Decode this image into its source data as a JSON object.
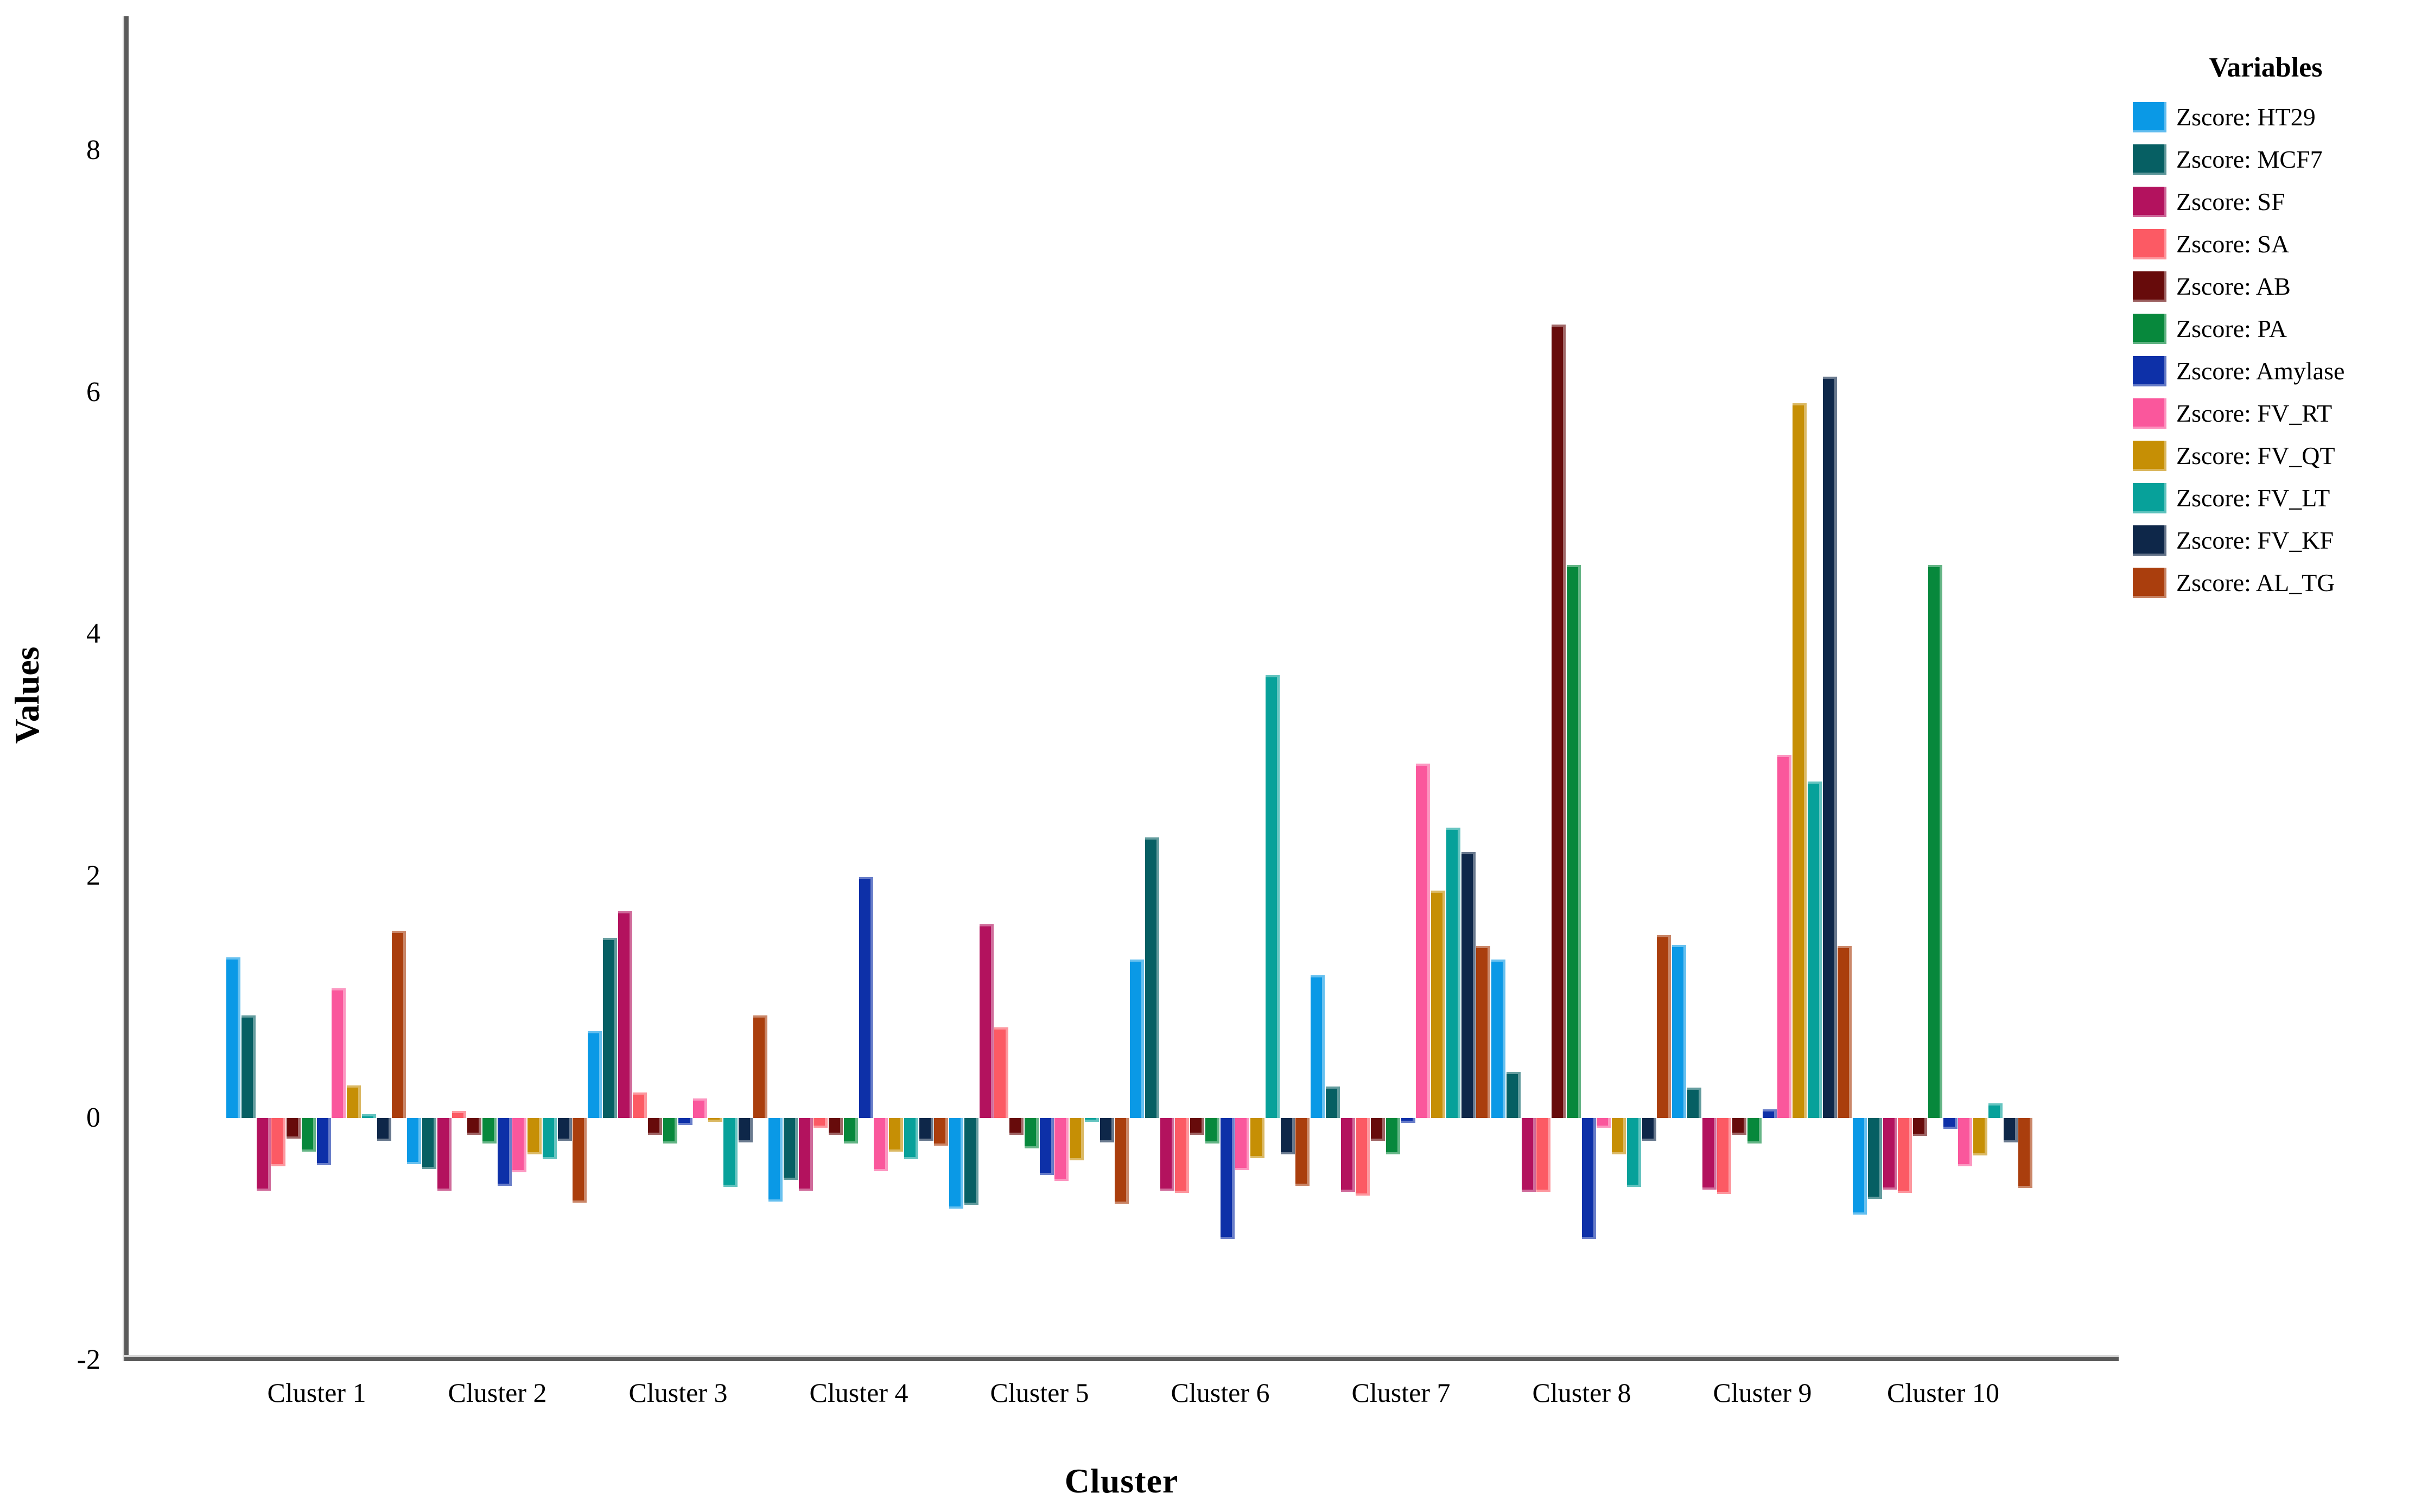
{
  "figure": {
    "y_axis_title": "Values",
    "x_axis_title": "Cluster",
    "legend_title": "Variables"
  },
  "chart_data": {
    "type": "bar",
    "title": "",
    "xlabel": "Cluster",
    "ylabel": "Values",
    "legend_title": "Variables",
    "legend_position": "right",
    "grid": false,
    "ylim": [
      -2,
      9.1
    ],
    "y_ticks": [
      8,
      6,
      4,
      2,
      0,
      -2
    ],
    "categories": [
      "Cluster 1",
      "Cluster 2",
      "Cluster 3",
      "Cluster 4",
      "Cluster 5",
      "Cluster 6",
      "Cluster 7",
      "Cluster 8",
      "Cluster 9",
      "Cluster 10"
    ],
    "series": [
      {
        "name": "Zscore: HT29",
        "color": "#0A99E6",
        "values": [
          1.33,
          -0.38,
          0.72,
          -0.69,
          -0.75,
          1.31,
          1.18,
          1.31,
          1.43,
          -0.8
        ]
      },
      {
        "name": "Zscore: MCF7",
        "color": "#065F63",
        "values": [
          0.85,
          -0.42,
          1.49,
          -0.51,
          -0.72,
          2.32,
          0.26,
          0.38,
          0.25,
          -0.67
        ]
      },
      {
        "name": "Zscore: SF",
        "color": "#B3125E",
        "values": [
          -0.6,
          -0.6,
          1.71,
          -0.6,
          1.6,
          -0.6,
          -0.61,
          -0.61,
          -0.59,
          -0.59
        ]
      },
      {
        "name": "Zscore: SA",
        "color": "#FC5A64",
        "values": [
          -0.4,
          0.06,
          0.21,
          -0.08,
          0.75,
          -0.62,
          -0.64,
          -0.61,
          -0.63,
          -0.62
        ]
      },
      {
        "name": "Zscore: AB",
        "color": "#670B0B",
        "values": [
          -0.17,
          -0.14,
          -0.14,
          -0.14,
          -0.14,
          -0.14,
          -0.19,
          6.56,
          -0.14,
          -0.15
        ]
      },
      {
        "name": "Zscore: PA",
        "color": "#07883C",
        "values": [
          -0.28,
          -0.21,
          -0.21,
          -0.21,
          -0.25,
          -0.21,
          -0.3,
          4.57,
          -0.21,
          4.57
        ]
      },
      {
        "name": "Zscore: Amylase",
        "color": "#0D30A8",
        "values": [
          -0.39,
          -0.56,
          -0.06,
          1.99,
          -0.47,
          -1.0,
          -0.04,
          -1.0,
          0.07,
          -0.09
        ]
      },
      {
        "name": "Zscore: FV_RT",
        "color": "#FA579C",
        "values": [
          1.07,
          -0.45,
          0.16,
          -0.44,
          -0.52,
          -0.43,
          2.93,
          -0.08,
          3.0,
          -0.4
        ]
      },
      {
        "name": "Zscore: FV_QT",
        "color": "#C68F05",
        "values": [
          0.27,
          -0.3,
          -0.03,
          -0.28,
          -0.35,
          -0.33,
          1.88,
          -0.3,
          5.91,
          -0.31
        ]
      },
      {
        "name": "Zscore: FV_LT",
        "color": "#07A19A",
        "values": [
          0.03,
          -0.34,
          -0.57,
          -0.34,
          -0.03,
          3.66,
          2.4,
          -0.57,
          2.78,
          0.12
        ]
      },
      {
        "name": "Zscore: FV_KF",
        "color": "#0E2749",
        "values": [
          -0.19,
          -0.19,
          -0.2,
          -0.19,
          -0.2,
          -0.3,
          2.2,
          -0.19,
          6.13,
          -0.2
        ]
      },
      {
        "name": "Zscore: AL_TG",
        "color": "#AA3E0D",
        "values": [
          1.55,
          -0.7,
          0.85,
          -0.23,
          -0.71,
          -0.56,
          1.42,
          1.51,
          1.42,
          -0.58
        ]
      }
    ]
  }
}
